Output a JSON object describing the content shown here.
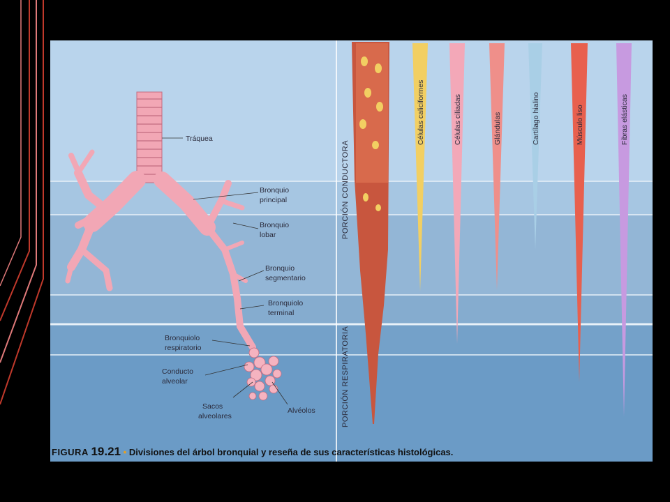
{
  "figure": {
    "number_prefix": "FIGURA",
    "number": "19.21",
    "caption": "Divisiones del árbol bronquial y reseña de sus características histológicas."
  },
  "labels": {
    "traquea": "Tráquea",
    "bronquio_principal": [
      "Bronquio",
      "principal"
    ],
    "bronquio_lobar": [
      "Bronquio",
      "lobar"
    ],
    "bronquio_segmentario": [
      "Bronquio",
      "segmentario"
    ],
    "bronquiolo_terminal": [
      "Bronquiolo",
      "terminal"
    ],
    "bronquiolo_respiratorio": [
      "Bronquiolo",
      "respiratorio"
    ],
    "conducto_alveolar": [
      "Conducto",
      "alveolar"
    ],
    "sacos_alveolares": [
      "Sacos",
      "alveolares"
    ],
    "alveolos": "Alvéolos"
  },
  "sections": {
    "conductora": "PORCIÓN CONDUCTORA",
    "respiratoria": "PORCIÓN RESPIRATORIA"
  },
  "features": [
    {
      "name": "Células caliciformes",
      "color": "#f2cf62"
    },
    {
      "name": "Células ciliadas",
      "color": "#f3a8b8"
    },
    {
      "name": "Glándulas",
      "color": "#ef8f8a"
    },
    {
      "name": "Cartílago hialino",
      "color": "#a9cfe6"
    },
    {
      "name": "Músculo liso",
      "color": "#e8604e"
    },
    {
      "name": "Fibras elásticas",
      "color": "#c79ae0"
    }
  ]
}
